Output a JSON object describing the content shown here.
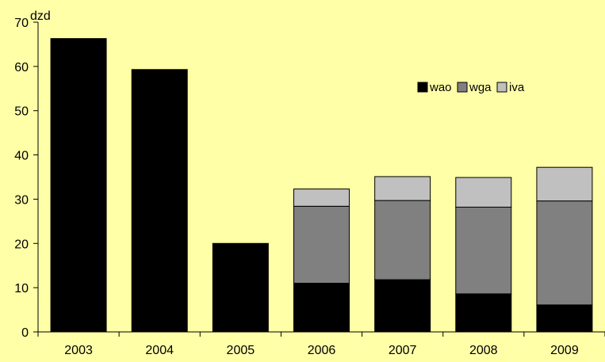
{
  "chart_data": {
    "type": "bar",
    "stacked": true,
    "ylabel": "dzd",
    "ylim": [
      0,
      70
    ],
    "yticks": [
      0,
      10,
      20,
      30,
      40,
      50,
      60,
      70
    ],
    "categories": [
      "2003",
      "2004",
      "2005",
      "2006",
      "2007",
      "2008",
      "2009"
    ],
    "legend_position": "upper-right",
    "grid": false,
    "series": [
      {
        "name": "wao",
        "color": "#000000",
        "values": [
          66.3,
          59.3,
          20.0,
          11.0,
          11.8,
          8.6,
          6.1
        ]
      },
      {
        "name": "wga",
        "color": "#808080",
        "values": [
          null,
          null,
          null,
          17.4,
          17.9,
          19.6,
          23.5
        ]
      },
      {
        "name": "iva",
        "color": "#C0C0C0",
        "values": [
          null,
          null,
          null,
          3.9,
          5.4,
          6.7,
          7.6
        ]
      }
    ]
  }
}
